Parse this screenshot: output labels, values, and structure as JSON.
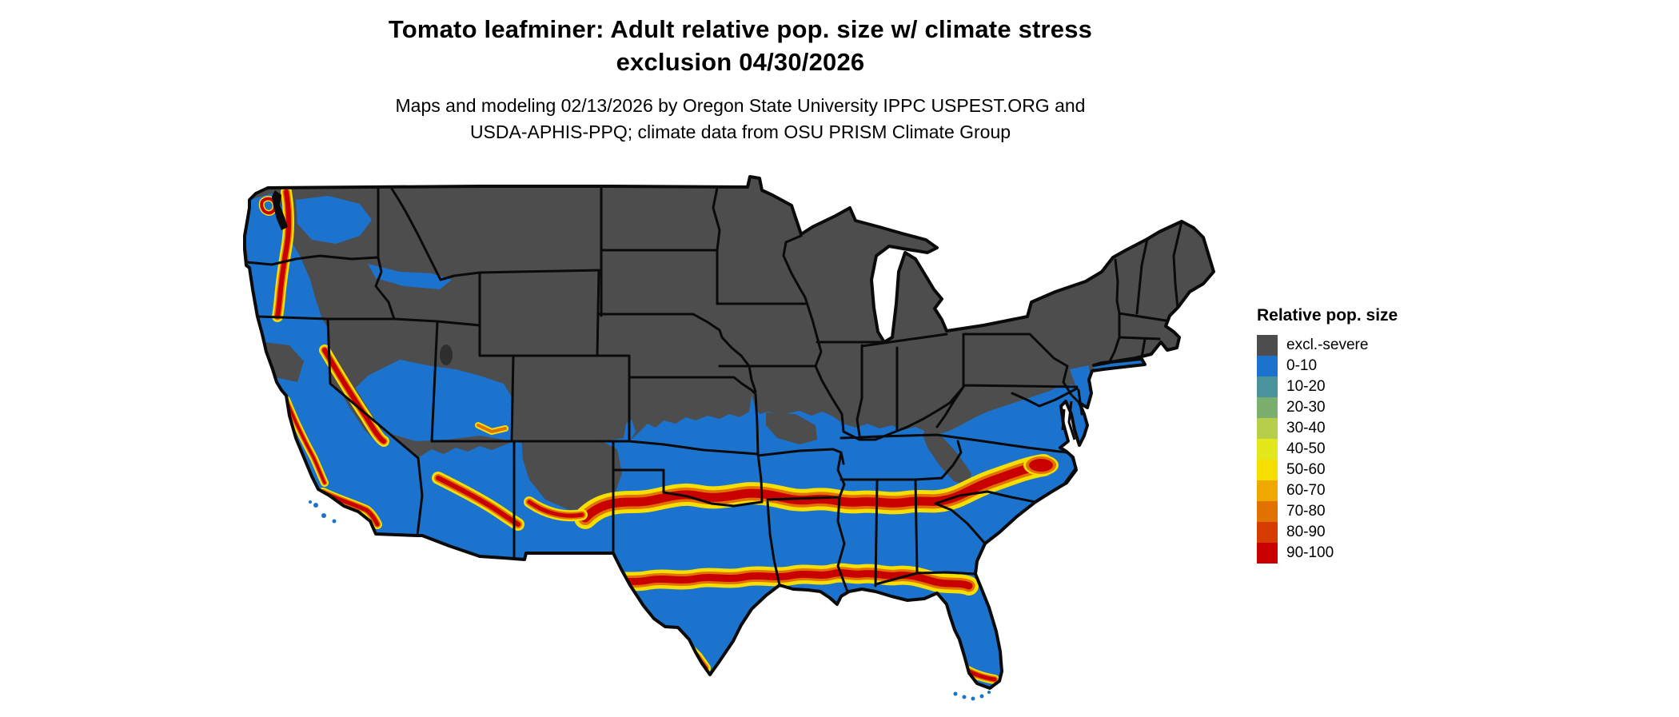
{
  "header": {
    "title_line1": "Tomato leafminer: Adult relative pop. size w/ climate stress",
    "title_line2": "exclusion 04/30/2026",
    "subtitle_line1": "Maps and modeling 02/13/2026 by Oregon State University IPPC USPEST.ORG and",
    "subtitle_line2": "USDA-APHIS-PPQ; climate data from OSU PRISM Climate Group"
  },
  "legend": {
    "title": "Relative pop. size",
    "items": [
      {
        "label": "excl.-severe",
        "color": "#4D4D4D"
      },
      {
        "label": "0-10",
        "color": "#1B73CE"
      },
      {
        "label": "10-20",
        "color": "#4B939C"
      },
      {
        "label": "20-30",
        "color": "#7BAF70"
      },
      {
        "label": "30-40",
        "color": "#B7CE4A"
      },
      {
        "label": "40-50",
        "color": "#E2E81C"
      },
      {
        "label": "50-60",
        "color": "#F5DE00"
      },
      {
        "label": "60-70",
        "color": "#EEA800"
      },
      {
        "label": "70-80",
        "color": "#E27200"
      },
      {
        "label": "80-90",
        "color": "#D63C00"
      },
      {
        "label": "90-100",
        "color": "#C80000"
      }
    ]
  },
  "map": {
    "region": "Contiguous United States"
  },
  "colors": {
    "background": "#FFFFFF",
    "map_border": "#0A0A0A",
    "excluded": "#4D4D4D",
    "suitable_low": "#1B73CE",
    "band_yellow": "#F5DE00",
    "band_orange": "#E27200",
    "band_red": "#C80000",
    "water": "#0A0A0A"
  }
}
